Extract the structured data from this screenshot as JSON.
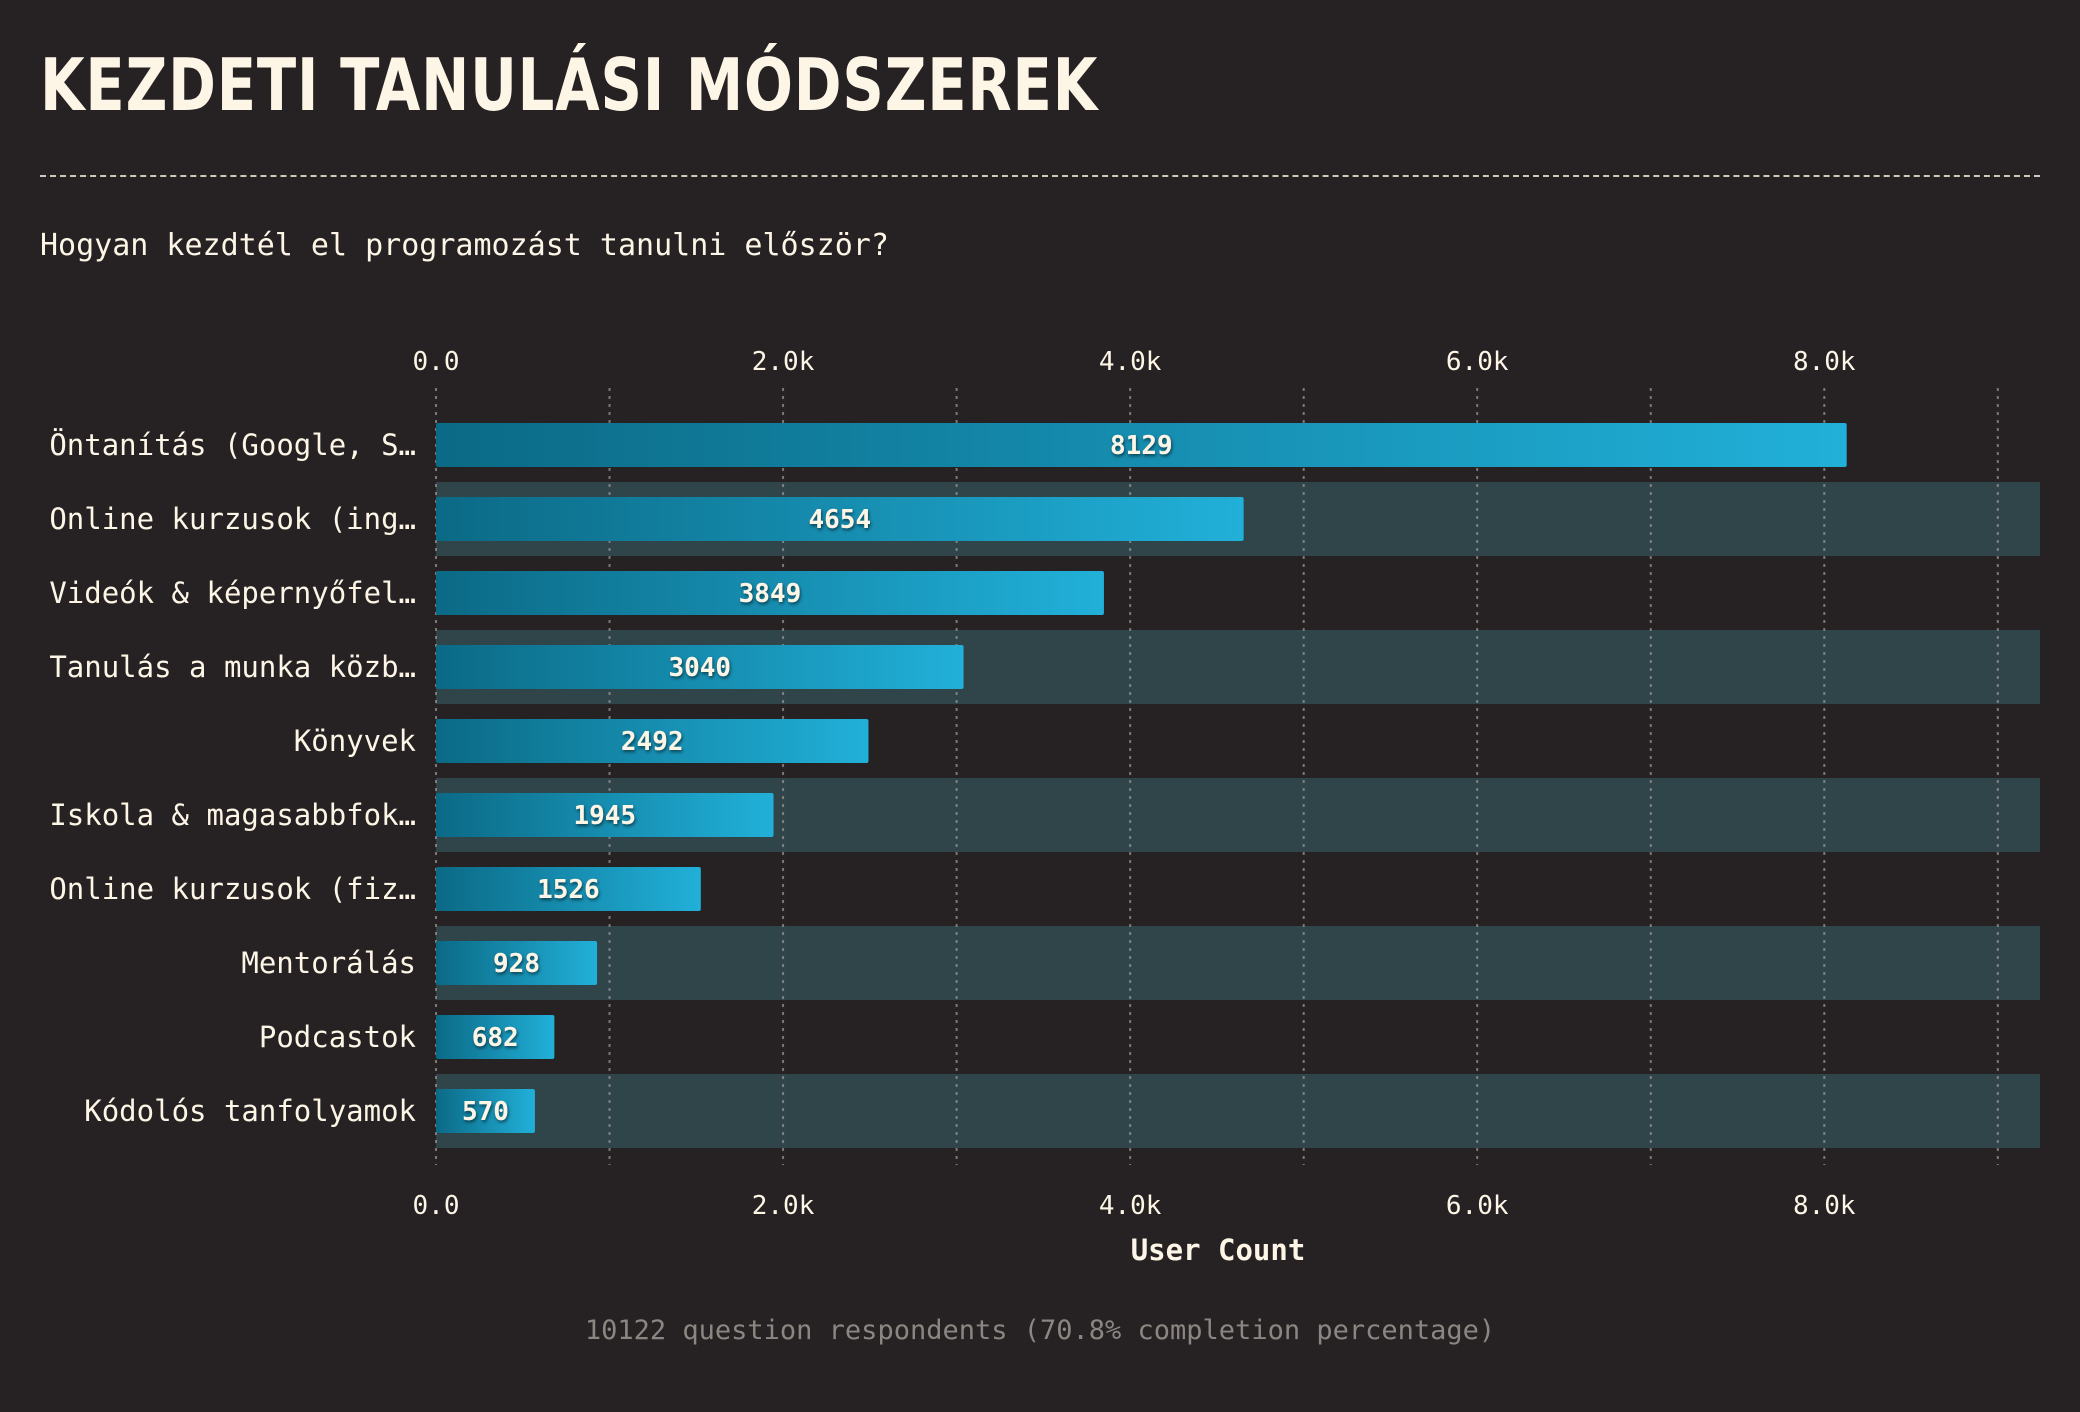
{
  "title": "KEZDETI TANULÁSI MÓDSZEREK",
  "subtitle": "Hogyan kezdtél el programozást tanulni először?",
  "footnote": "10122 question respondents (70.8% completion percentage)",
  "colors": {
    "background": "#262223",
    "band": "#30454a",
    "bar_start": "#0b6a86",
    "bar_end": "#21b0d9",
    "text": "#fdf5e6",
    "grid": "#9a9590",
    "muted": "#8b8682"
  },
  "chart_data": {
    "type": "bar",
    "orientation": "horizontal",
    "categories": [
      "Öntanítás (Google, S…",
      "Online kurzusok (ing…",
      "Videók & képernyőfel…",
      "Tanulás a munka közb…",
      "Könyvek",
      "Iskola & magasabbfok…",
      "Online kurzusok (fiz…",
      "Mentorálás",
      "Podcastok",
      "Kódolós tanfolyamok"
    ],
    "values": [
      8129,
      4654,
      3849,
      3040,
      2492,
      1945,
      1526,
      928,
      682,
      570
    ],
    "xlabel": "User Count",
    "ylabel": "",
    "xlim": [
      0,
      9243
    ],
    "ticks": [
      0,
      2000,
      4000,
      6000,
      8000
    ],
    "tick_labels": [
      "0.0",
      "2.0k",
      "4.0k",
      "6.0k",
      "8.0k"
    ],
    "minor_grid": [
      1000,
      3000,
      5000,
      7000,
      9000
    ],
    "grid": true,
    "legend": "none",
    "alternating_row_bands": true
  }
}
